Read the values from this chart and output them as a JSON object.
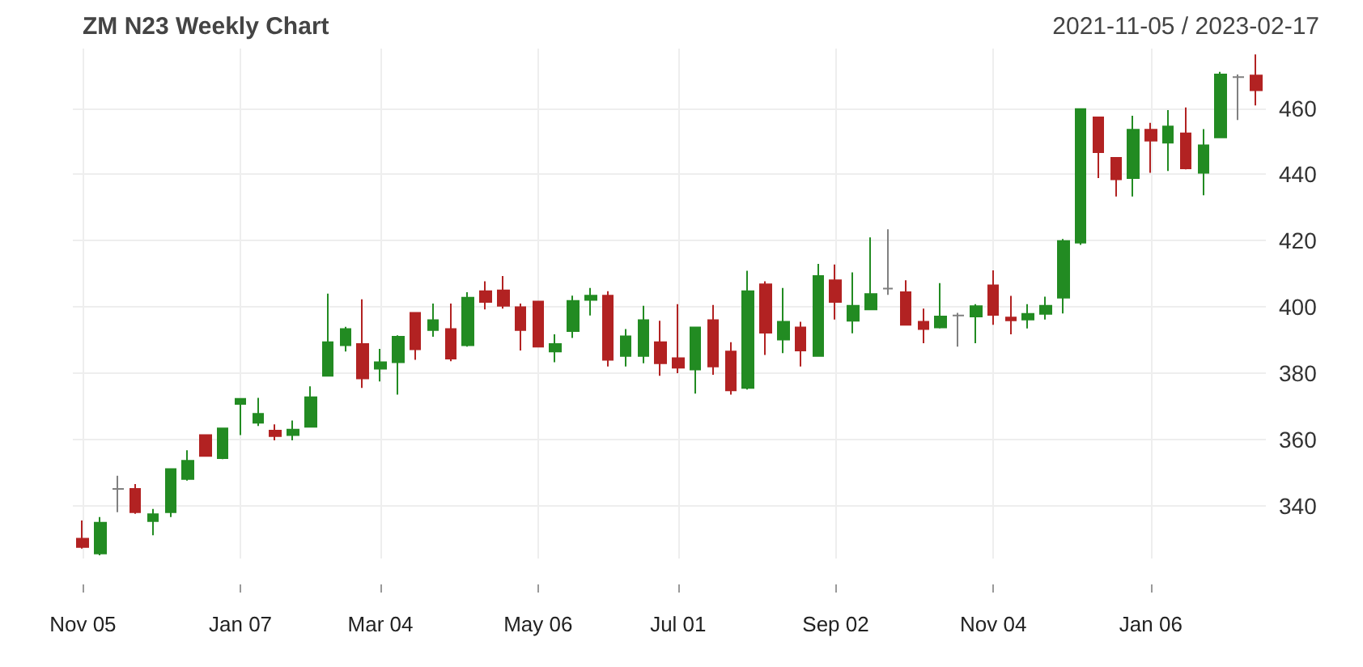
{
  "chart_data": {
    "type": "candlestick",
    "title": "ZM N23 Weekly Chart",
    "subtitle": "2021-11-05 / 2023-02-17",
    "x": [
      "2021-11-05",
      "2021-11-12",
      "2021-11-19",
      "2021-11-26",
      "2021-12-03",
      "2021-12-10",
      "2021-12-17",
      "2021-12-24",
      "2021-12-31",
      "2022-01-07",
      "2022-01-14",
      "2022-01-21",
      "2022-01-28",
      "2022-02-04",
      "2022-02-11",
      "2022-02-18",
      "2022-02-25",
      "2022-03-04",
      "2022-03-11",
      "2022-03-18",
      "2022-03-25",
      "2022-04-01",
      "2022-04-08",
      "2022-04-15",
      "2022-04-22",
      "2022-04-29",
      "2022-05-06",
      "2022-05-13",
      "2022-05-20",
      "2022-05-27",
      "2022-06-03",
      "2022-06-10",
      "2022-06-17",
      "2022-06-24",
      "2022-07-01",
      "2022-07-08",
      "2022-07-15",
      "2022-07-22",
      "2022-07-29",
      "2022-08-05",
      "2022-08-12",
      "2022-08-19",
      "2022-08-26",
      "2022-09-02",
      "2022-09-09",
      "2022-09-16",
      "2022-09-23",
      "2022-09-30",
      "2022-10-07",
      "2022-10-14",
      "2022-10-21",
      "2022-10-28",
      "2022-11-04",
      "2022-11-11",
      "2022-11-18",
      "2022-11-25",
      "2022-12-02",
      "2022-12-09",
      "2022-12-16",
      "2022-12-23",
      "2022-12-30",
      "2023-01-06",
      "2023-01-13",
      "2023-01-20",
      "2023-01-27",
      "2023-02-03",
      "2023-02-10",
      "2023-02-17"
    ],
    "ohlc": [
      [
        330,
        335.5,
        327,
        327.5
      ],
      [
        325.5,
        336.5,
        325,
        334.8
      ],
      [
        345,
        349,
        338,
        345
      ],
      [
        345,
        346.5,
        337.5,
        338
      ],
      [
        335.3,
        339,
        331,
        337.4
      ],
      [
        338,
        351,
        336.5,
        351
      ],
      [
        348,
        356.7,
        347.5,
        353.5
      ],
      [
        361.3,
        361.5,
        355,
        355
      ],
      [
        354.3,
        363.5,
        354,
        363.3
      ],
      [
        370.7,
        372.3,
        361.3,
        372.2
      ],
      [
        365,
        372.5,
        364,
        367.7
      ],
      [
        362.6,
        364.5,
        359.7,
        361
      ],
      [
        361.3,
        365.7,
        359.7,
        362.9
      ],
      [
        363.8,
        376,
        363.8,
        372.7
      ],
      [
        379.2,
        404,
        379,
        389.3
      ],
      [
        388.4,
        394,
        386.5,
        393.3
      ],
      [
        388.8,
        402.3,
        375.5,
        378.4
      ],
      [
        381.3,
        387.3,
        377.5,
        383.3
      ],
      [
        383.3,
        391.4,
        373.5,
        391
      ],
      [
        398.2,
        398.2,
        384,
        387.2
      ],
      [
        393,
        401,
        391,
        396
      ],
      [
        393.3,
        401,
        383.6,
        384.4
      ],
      [
        388.4,
        404.4,
        388,
        402.8
      ],
      [
        404.7,
        407.7,
        399.2,
        401.5
      ],
      [
        405,
        409.3,
        399.5,
        400.3
      ],
      [
        399.9,
        401,
        386.8,
        393
      ],
      [
        401.6,
        401.8,
        387.8,
        388
      ],
      [
        386.5,
        391.7,
        383.3,
        388.8
      ],
      [
        392.7,
        403.4,
        390.6,
        401.8
      ],
      [
        402.1,
        405.7,
        397.4,
        403.4
      ],
      [
        403.4,
        404.7,
        382,
        384
      ],
      [
        385.2,
        393.3,
        382,
        391.1
      ],
      [
        385.2,
        400.3,
        383,
        396
      ],
      [
        389.3,
        395.8,
        379.2,
        383
      ],
      [
        384.5,
        400.8,
        380,
        381.6
      ],
      [
        381.1,
        393.8,
        373.8,
        393.8
      ],
      [
        396,
        400.6,
        379.5,
        382
      ],
      [
        386.5,
        389.3,
        373.5,
        374.8
      ],
      [
        375.5,
        410.9,
        375,
        404.7
      ],
      [
        406.8,
        407.7,
        385.5,
        392.2
      ],
      [
        390.1,
        405.7,
        386,
        395.5
      ],
      [
        393.8,
        395.5,
        382,
        386.8
      ],
      [
        385.2,
        413,
        385,
        409.3
      ],
      [
        408,
        412.8,
        396.2,
        401.5
      ],
      [
        395.8,
        410.4,
        392,
        400.3
      ],
      [
        399.2,
        421,
        399,
        403.9
      ],
      [
        405.5,
        423.4,
        403.6,
        405.5
      ],
      [
        404.4,
        408,
        394.5,
        394.6
      ],
      [
        395.5,
        399.5,
        389,
        393.3
      ],
      [
        393.8,
        407.2,
        393.5,
        397.1
      ],
      [
        397.4,
        398.2,
        388,
        397.4
      ],
      [
        397.1,
        400.8,
        389,
        400.2
      ],
      [
        406.5,
        411,
        394.6,
        397.6
      ],
      [
        396.8,
        403.3,
        391.7,
        395.9
      ],
      [
        396.2,
        400.8,
        393.5,
        397.9
      ],
      [
        397.9,
        403.1,
        396.2,
        400.3
      ],
      [
        402.8,
        420.5,
        398,
        419.9
      ],
      [
        419.4,
        459.8,
        418.7,
        459.7
      ],
      [
        457.2,
        457.2,
        438.9,
        446.7
      ],
      [
        445,
        445,
        433.3,
        438.5
      ],
      [
        438.9,
        457.7,
        433.3,
        453.5
      ],
      [
        453.5,
        455.6,
        440.5,
        450.2
      ],
      [
        449.6,
        459.4,
        441,
        454.5
      ],
      [
        452.4,
        460.2,
        441.5,
        441.8
      ],
      [
        440.5,
        453.7,
        433.7,
        448.8
      ],
      [
        451.2,
        471,
        451,
        470.2
      ],
      [
        469.4,
        470.2,
        456.4,
        469.4
      ],
      [
        469.9,
        476.2,
        460.8,
        465.4
      ]
    ],
    "colors": [
      "#b22222",
      "#228b22",
      "#808080",
      "#b22222",
      "#228b22",
      "#228b22",
      "#228b22",
      "#b22222",
      "#228b22",
      "#228b22",
      "#228b22",
      "#b22222",
      "#228b22",
      "#228b22",
      "#228b22",
      "#228b22",
      "#b22222",
      "#228b22",
      "#228b22",
      "#b22222",
      "#228b22",
      "#b22222",
      "#228b22",
      "#b22222",
      "#b22222",
      "#b22222",
      "#b22222",
      "#228b22",
      "#228b22",
      "#228b22",
      "#b22222",
      "#228b22",
      "#228b22",
      "#b22222",
      "#b22222",
      "#228b22",
      "#b22222",
      "#b22222",
      "#228b22",
      "#b22222",
      "#228b22",
      "#b22222",
      "#228b22",
      "#b22222",
      "#228b22",
      "#228b22",
      "#808080",
      "#b22222",
      "#b22222",
      "#228b22",
      "#808080",
      "#228b22",
      "#b22222",
      "#b22222",
      "#228b22",
      "#228b22",
      "#228b22",
      "#228b22",
      "#b22222",
      "#b22222",
      "#228b22",
      "#b22222",
      "#228b22",
      "#b22222",
      "#228b22",
      "#228b22",
      "#808080",
      "#b22222"
    ],
    "xlim": [
      "2021-11-01",
      "2023-02-21"
    ],
    "xticks": [
      {
        "value": "2021-11-05",
        "label": "Nov 05"
      },
      {
        "value": "2022-01-07",
        "label": "Jan 07"
      },
      {
        "value": "2022-03-04",
        "label": "Mar 04"
      },
      {
        "value": "2022-05-06",
        "label": "May 06"
      },
      {
        "value": "2022-07-01",
        "label": "Jul 01"
      },
      {
        "value": "2022-09-02",
        "label": "Sep 02"
      },
      {
        "value": "2022-11-04",
        "label": "Nov 04"
      },
      {
        "value": "2023-01-06",
        "label": "Jan 06"
      }
    ],
    "ylim": [
      324,
      478
    ],
    "yticks": [
      340,
      360,
      380,
      400,
      420,
      440,
      460
    ],
    "grid": true
  }
}
